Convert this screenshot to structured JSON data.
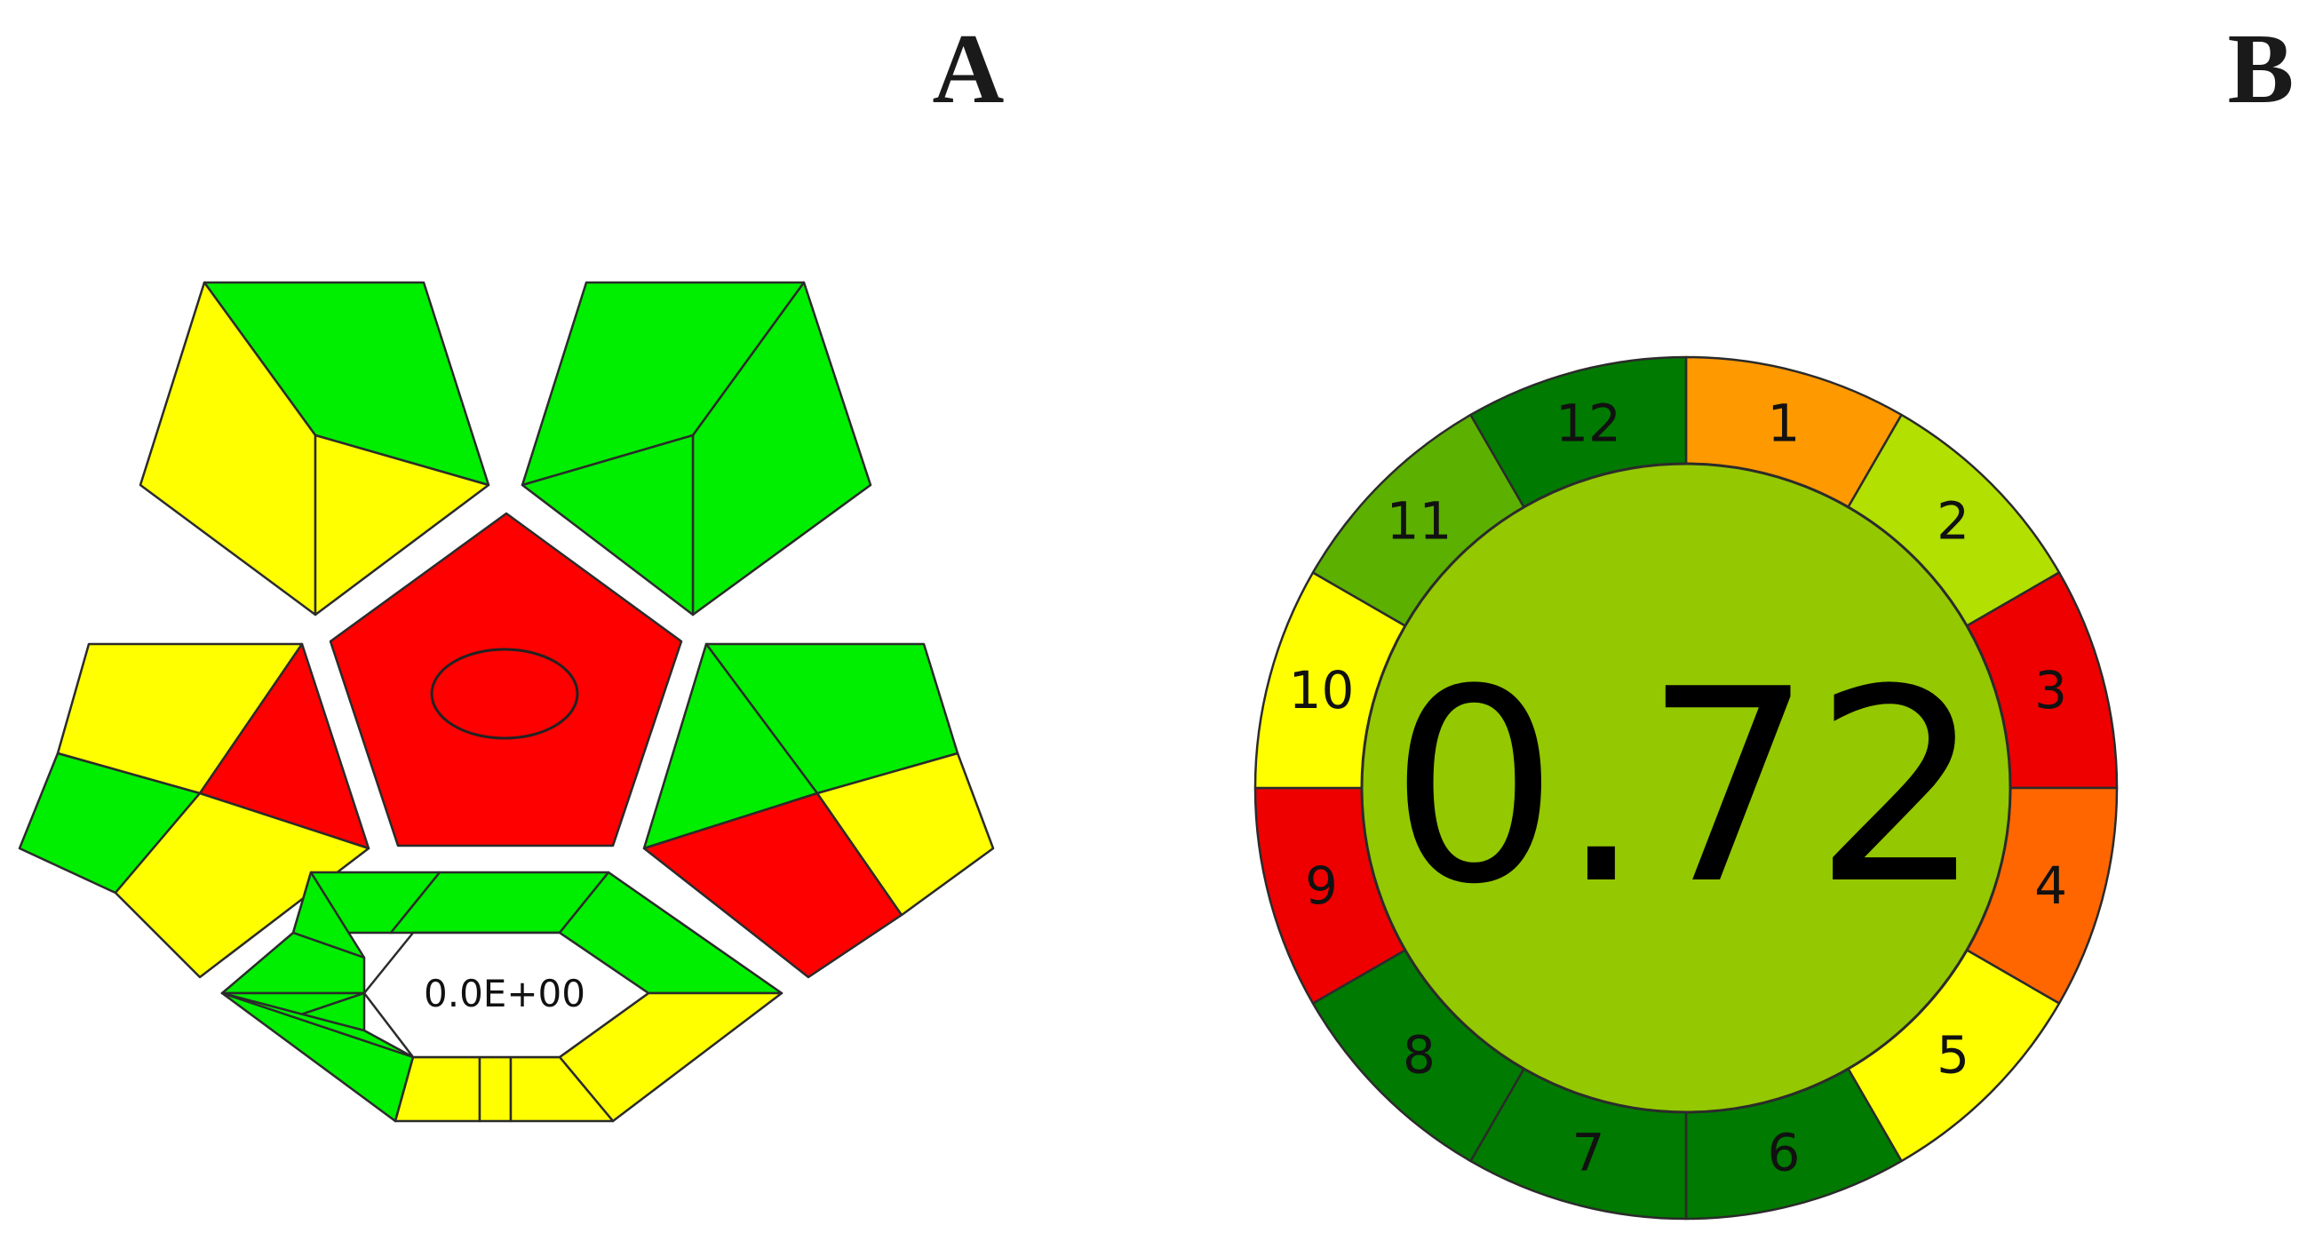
{
  "labels": {
    "panel_a": "A",
    "panel_b": "B"
  },
  "gapi": {
    "center_value": "0.0E+00",
    "colors": {
      "green": "#00ee00",
      "yellow": "#ffff00",
      "red": "#ff0000"
    }
  },
  "agree": {
    "score": "0.72",
    "score_color": "#94c800",
    "segments": [
      {
        "num": "1",
        "color": "#ff9900"
      },
      {
        "num": "2",
        "color": "#b2e000"
      },
      {
        "num": "3",
        "color": "#ee0000"
      },
      {
        "num": "4",
        "color": "#ff6600"
      },
      {
        "num": "5",
        "color": "#ffff00"
      },
      {
        "num": "6",
        "color": "#007a00"
      },
      {
        "num": "7",
        "color": "#007a00"
      },
      {
        "num": "8",
        "color": "#007a00"
      },
      {
        "num": "9",
        "color": "#ee0000"
      },
      {
        "num": "10",
        "color": "#ffff00"
      },
      {
        "num": "11",
        "color": "#5cb000"
      },
      {
        "num": "12",
        "color": "#007a00"
      }
    ]
  }
}
